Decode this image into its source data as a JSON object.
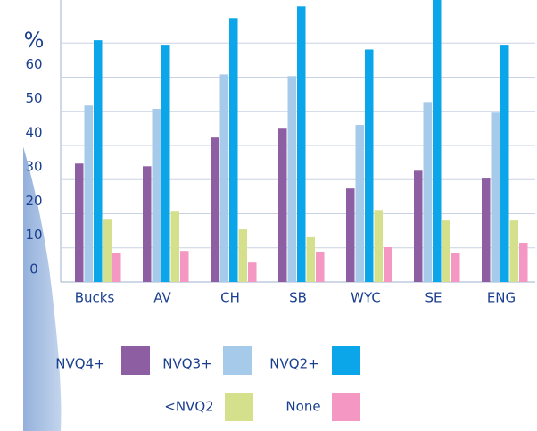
{
  "chart_data": {
    "type": "bar",
    "categories": [
      "Bucks",
      "AV",
      "CH",
      "SB",
      "WYC",
      "SE",
      "ENG"
    ],
    "series": [
      {
        "name": "NVQ4+",
        "color": "#8e5ea2",
        "values": [
          34.7,
          33.9,
          42.3,
          44.9,
          27.4,
          32.6,
          30.3
        ]
      },
      {
        "name": "NVQ3+",
        "color": "#a6cbea",
        "values": [
          51.7,
          50.7,
          60.8,
          60.3,
          46.0,
          52.7,
          49.6
        ]
      },
      {
        "name": "NVQ2+",
        "color": "#0ba6e9",
        "values": [
          70.8,
          69.5,
          77.3,
          80.7,
          68.1,
          82.6,
          69.5
        ]
      },
      {
        "name": "<NVQ2",
        "color": "#d5e08c",
        "values": [
          18.5,
          20.6,
          15.4,
          13.1,
          21.1,
          18.0,
          18.0
        ]
      },
      {
        "name": "None",
        "color": "#f497c2",
        "values": [
          8.4,
          9.1,
          5.7,
          8.9,
          10.2,
          8.4,
          11.5
        ]
      }
    ],
    "ylim": [
      0,
      82.6
    ],
    "yticks": [
      0,
      10,
      20,
      30,
      40,
      50,
      60,
      {
        "value": 70,
        "label": "%"
      }
    ],
    "grid": true
  }
}
